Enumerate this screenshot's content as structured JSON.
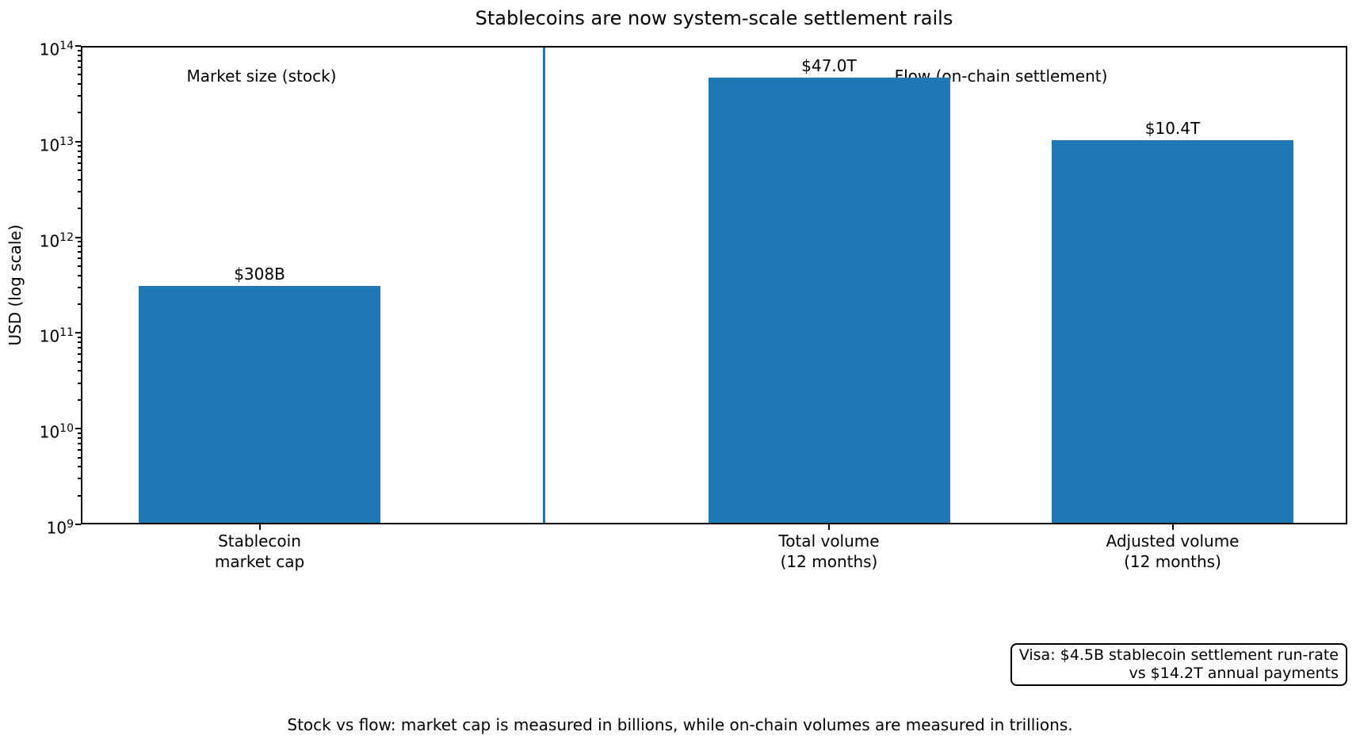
{
  "figure": {
    "title": "Stablecoins are now system-scale settlement rails",
    "caption": "Stock vs flow: market cap is measured in billions, while on-chain volumes are measured in trillions."
  },
  "annotation_box": {
    "line1": "Visa: $4.5B stablecoin settlement run-rate",
    "line2": "vs $14.2T annual payments"
  },
  "chart_data": {
    "type": "bar",
    "title": "Stablecoins are now system-scale settlement rails",
    "ylabel": "USD (log scale)",
    "xlabel": "",
    "yscale": "log",
    "ylim": [
      1000000000,
      100000000000000
    ],
    "y_tick_exponents": [
      9,
      10,
      11,
      12,
      13,
      14
    ],
    "grid": false,
    "legend": false,
    "categories": [
      "Stablecoin\nmarket cap",
      "Total volume\n(12 months)",
      "Adjusted volume\n(12 months)"
    ],
    "values": [
      308000000000,
      47000000000000,
      10400000000000
    ],
    "bar_labels": [
      "$308B",
      "$47.0T",
      "$10.4T"
    ],
    "group_labels": [
      "Market size (stock)",
      "Flow (on-chain settlement)"
    ],
    "bar_color": "#1f77b4",
    "divider_color": "#1f77b4",
    "annotation": "Visa: $4.5B stablecoin settlement run-rate\nvs $14.2T annual payments",
    "caption": "Stock vs flow: market cap is measured in billions, while on-chain volumes are measured in trillions."
  }
}
